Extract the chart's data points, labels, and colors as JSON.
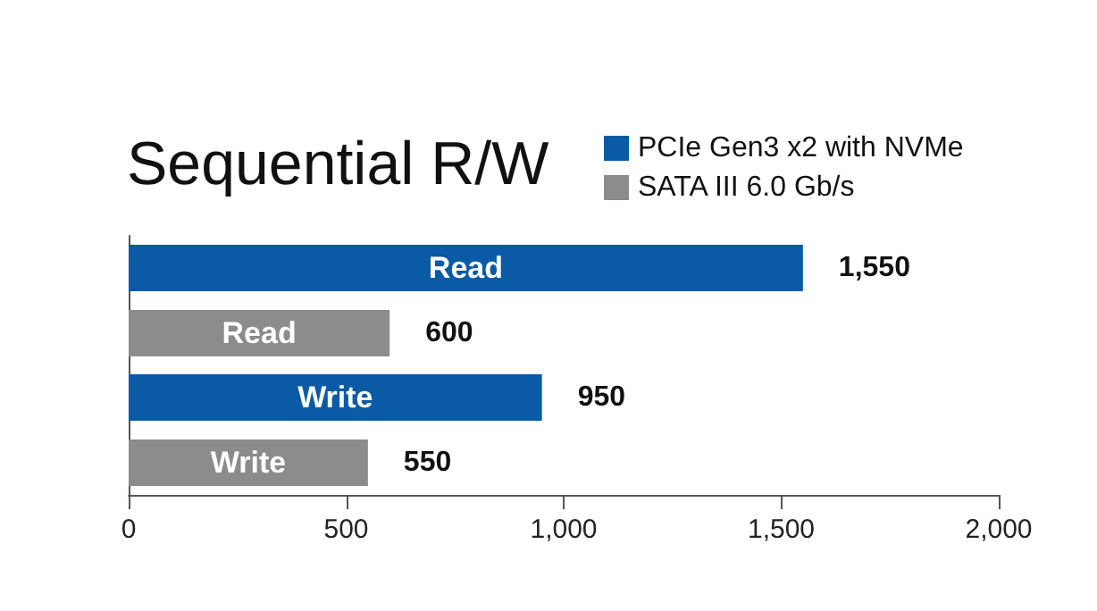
{
  "chart_data": {
    "type": "bar",
    "title": "Sequential R/W",
    "orientation": "horizontal",
    "categories": [
      "Read",
      "Write"
    ],
    "series": [
      {
        "name": "PCIe Gen3 x2 with NVMe",
        "color": "#0a5aa5",
        "values": [
          1550,
          950
        ],
        "value_labels": [
          "1,550",
          "950"
        ]
      },
      {
        "name": "SATA III 6.0 Gb/s",
        "color": "#8c8c8c",
        "values": [
          600,
          550
        ],
        "value_labels": [
          "600",
          "550"
        ]
      }
    ],
    "xlim": [
      0,
      2000
    ],
    "xticks": [
      0,
      500,
      {
        "value": 1000,
        "label": "1,000"
      },
      {
        "value": 1500,
        "label": "1,500"
      },
      {
        "value": 2000,
        "label": "2,000"
      }
    ],
    "grid": false,
    "legend": "top right"
  }
}
